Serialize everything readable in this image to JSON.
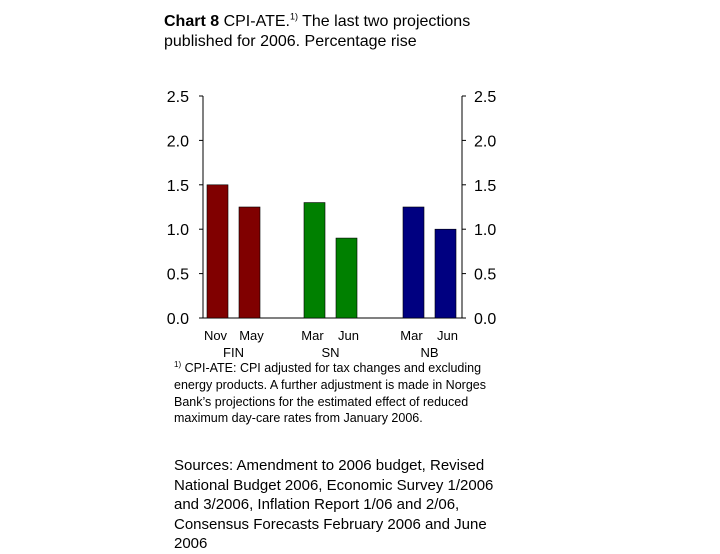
{
  "title": {
    "bold": "Chart 8",
    "prefix": "CPI-ATE.",
    "sup": "1)",
    "rest": "The last two projections published for 2006. Percentage rise"
  },
  "chart_data": {
    "type": "bar",
    "ylim": [
      0,
      2.5
    ],
    "yticks": [
      "0.0",
      "0.5",
      "1.0",
      "1.5",
      "2.0",
      "2.5"
    ],
    "ytick_values": [
      0,
      0.5,
      1.0,
      1.5,
      2.0,
      2.5
    ],
    "groups": [
      {
        "name": "FIN",
        "color": "#800000",
        "labels": [
          "Nov",
          "May"
        ],
        "values": [
          1.5,
          1.25
        ]
      },
      {
        "name": "SN",
        "color": "#008000",
        "labels": [
          "Mar",
          "Jun"
        ],
        "values": [
          1.3,
          0.9
        ]
      },
      {
        "name": "NB",
        "color": "#000080",
        "labels": [
          "Mar",
          "Jun"
        ],
        "values": [
          1.25,
          1.0
        ]
      }
    ]
  },
  "footnote": {
    "sup": "1)",
    "text": "CPI-ATE: CPI adjusted for tax changes and excluding energy products. A further adjustment is made in Norges Bank’s projections for the estimated effect of reduced maximum day-care rates from January 2006."
  },
  "sources": "Sources: Amendment to 2006 budget, Revised National Budget 2006, Economic Survey 1/2006 and 3/2006, Inflation Report 1/06 and 2/06, Consensus Forecasts February 2006 and June 2006"
}
